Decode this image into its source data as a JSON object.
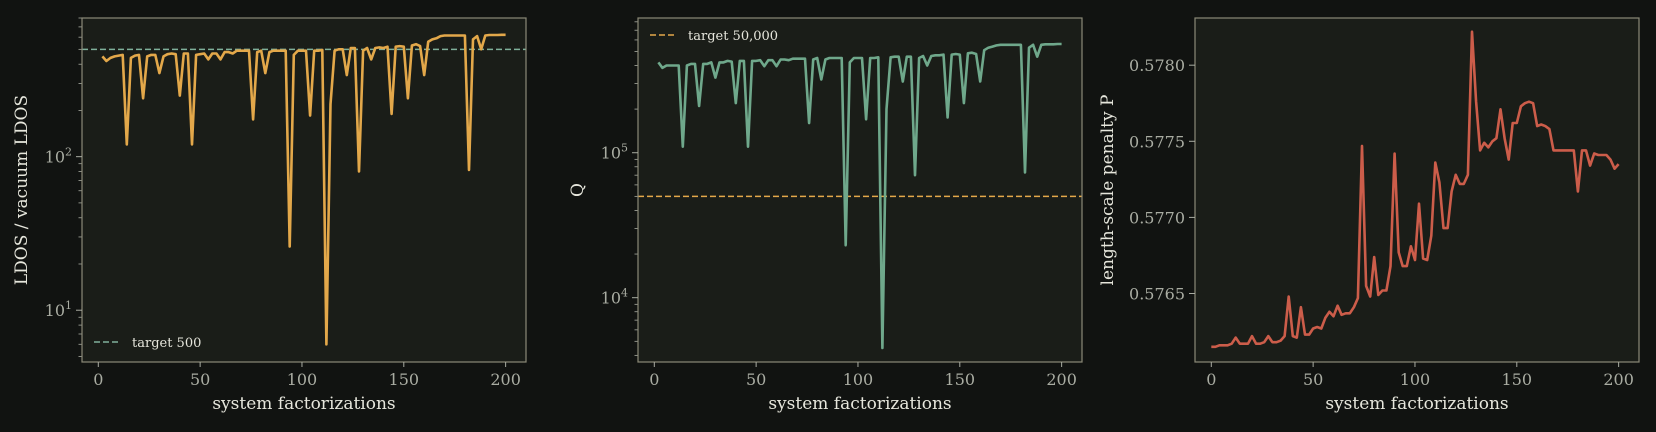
{
  "chart_data": [
    {
      "type": "line",
      "xlabel": "system factorizations",
      "ylabel": "LDOS / vacuum LDOS",
      "yscale": "log",
      "xlim": [
        -8,
        210
      ],
      "ylim": [
        4.6,
        800
      ],
      "xticks": [
        {
          "v": 0,
          "label": "0"
        },
        {
          "v": 50,
          "label": "50"
        },
        {
          "v": 100,
          "label": "100"
        },
        {
          "v": 150,
          "label": "150"
        },
        {
          "v": 200,
          "label": "200"
        }
      ],
      "yticks": [
        {
          "v": 10,
          "base": "10",
          "exp": "1"
        },
        {
          "v": 100,
          "base": "10",
          "exp": "2"
        }
      ],
      "grid": false,
      "legend_position": "lower-left",
      "series": [
        {
          "color": "#e3a84a",
          "x": [
            2,
            4,
            6,
            8,
            10,
            12,
            14,
            16,
            18,
            20,
            22,
            24,
            26,
            28,
            30,
            32,
            34,
            36,
            38,
            40,
            42,
            44,
            46,
            48,
            50,
            52,
            54,
            56,
            58,
            60,
            62,
            64,
            66,
            68,
            70,
            72,
            74,
            76,
            78,
            80,
            82,
            84,
            86,
            88,
            90,
            92,
            94,
            96,
            98,
            100,
            102,
            104,
            106,
            108,
            110,
            112,
            114,
            116,
            118,
            120,
            122,
            124,
            126,
            128,
            130,
            132,
            134,
            136,
            138,
            140,
            142,
            144,
            146,
            148,
            150,
            152,
            154,
            156,
            158,
            160,
            162,
            164,
            166,
            168,
            170,
            172,
            174,
            176,
            178,
            180,
            182,
            184,
            186,
            188,
            190,
            192,
            194,
            196,
            198,
            200
          ],
          "y": [
            450,
            420,
            440,
            450,
            455,
            460,
            120,
            440,
            455,
            460,
            240,
            450,
            460,
            460,
            350,
            450,
            465,
            470,
            465,
            250,
            470,
            470,
            120,
            460,
            465,
            470,
            430,
            470,
            470,
            430,
            480,
            480,
            470,
            490,
            490,
            490,
            490,
            175,
            480,
            490,
            350,
            480,
            490,
            490,
            490,
            490,
            26,
            460,
            490,
            490,
            490,
            185,
            490,
            490,
            495,
            6,
            220,
            490,
            500,
            500,
            340,
            510,
            510,
            80,
            490,
            510,
            430,
            510,
            515,
            510,
            520,
            190,
            520,
            525,
            520,
            240,
            530,
            540,
            525,
            340,
            560,
            580,
            590,
            610,
            615,
            615,
            615,
            615,
            615,
            615,
            82,
            580,
            610,
            500,
            615,
            620,
            620,
            620,
            622,
            622
          ]
        }
      ],
      "reference_line": {
        "y": 500,
        "label": "target 500",
        "color": "#7fb09a"
      }
    },
    {
      "type": "line",
      "xlabel": "system factorizations",
      "ylabel": "Q",
      "yscale": "log",
      "xlim": [
        -8,
        210
      ],
      "ylim": [
        3600,
        850000
      ],
      "xticks": [
        {
          "v": 0,
          "label": "0"
        },
        {
          "v": 50,
          "label": "50"
        },
        {
          "v": 100,
          "label": "100"
        },
        {
          "v": 150,
          "label": "150"
        },
        {
          "v": 200,
          "label": "200"
        }
      ],
      "yticks": [
        {
          "v": 10000,
          "base": "10",
          "exp": "4"
        },
        {
          "v": 100000,
          "base": "10",
          "exp": "5"
        }
      ],
      "grid": false,
      "legend_position": "upper-left",
      "series": [
        {
          "color": "#6fa88b",
          "x": [
            2,
            4,
            6,
            8,
            10,
            12,
            14,
            16,
            18,
            20,
            22,
            24,
            26,
            28,
            30,
            32,
            34,
            36,
            38,
            40,
            42,
            44,
            46,
            48,
            50,
            52,
            54,
            56,
            58,
            60,
            62,
            64,
            66,
            68,
            70,
            72,
            74,
            76,
            78,
            80,
            82,
            84,
            86,
            88,
            90,
            92,
            94,
            96,
            98,
            100,
            102,
            104,
            106,
            108,
            110,
            112,
            114,
            116,
            118,
            120,
            122,
            124,
            126,
            128,
            130,
            132,
            134,
            136,
            138,
            140,
            142,
            144,
            146,
            148,
            150,
            152,
            154,
            156,
            158,
            160,
            162,
            164,
            166,
            168,
            170,
            172,
            174,
            176,
            178,
            180,
            182,
            184,
            186,
            188,
            190,
            192,
            194,
            196,
            198,
            200
          ],
          "y": [
            420000,
            385000,
            400000,
            400000,
            400000,
            400000,
            110000,
            400000,
            410000,
            410000,
            210000,
            410000,
            410000,
            420000,
            330000,
            420000,
            420000,
            430000,
            425000,
            220000,
            430000,
            430000,
            110000,
            430000,
            430000,
            435000,
            395000,
            435000,
            435000,
            395000,
            440000,
            440000,
            435000,
            445000,
            445000,
            445000,
            445000,
            160000,
            440000,
            450000,
            320000,
            440000,
            450000,
            450000,
            450000,
            450000,
            23000,
            420000,
            450000,
            450000,
            450000,
            170000,
            450000,
            450000,
            455000,
            4500,
            200000,
            455000,
            460000,
            460000,
            310000,
            460000,
            460000,
            70000,
            450000,
            465000,
            400000,
            465000,
            470000,
            470000,
            475000,
            175000,
            475000,
            480000,
            475000,
            220000,
            485000,
            490000,
            480000,
            310000,
            510000,
            530000,
            540000,
            550000,
            555000,
            555000,
            555000,
            555000,
            555000,
            555000,
            73000,
            530000,
            555000,
            460000,
            555000,
            560000,
            560000,
            560000,
            562000,
            562000
          ]
        }
      ],
      "reference_line": {
        "y": 50000,
        "label": "target 50,000",
        "color": "#e3a84a"
      }
    },
    {
      "type": "line",
      "xlabel": "system factorizations",
      "ylabel": "length-scale penalty P",
      "yscale": "linear",
      "xlim": [
        -8,
        210
      ],
      "ylim": [
        0.57605,
        0.57831
      ],
      "xticks": [
        {
          "v": 0,
          "label": "0"
        },
        {
          "v": 50,
          "label": "50"
        },
        {
          "v": 100,
          "label": "100"
        },
        {
          "v": 150,
          "label": "150"
        },
        {
          "v": 200,
          "label": "200"
        }
      ],
      "yticks": [
        {
          "v": 0.5765,
          "label": "0.5765"
        },
        {
          "v": 0.577,
          "label": "0.5770"
        },
        {
          "v": 0.5775,
          "label": "0.5775"
        },
        {
          "v": 0.578,
          "label": "0.5780"
        }
      ],
      "grid": false,
      "series": [
        {
          "color": "#cc5d4a",
          "x": [
            0,
            2,
            4,
            6,
            8,
            10,
            12,
            14,
            16,
            18,
            20,
            22,
            24,
            26,
            28,
            30,
            32,
            34,
            36,
            38,
            40,
            42,
            44,
            46,
            48,
            50,
            52,
            54,
            56,
            58,
            60,
            62,
            64,
            66,
            68,
            70,
            72,
            74,
            76,
            78,
            80,
            82,
            84,
            86,
            88,
            90,
            92,
            94,
            96,
            98,
            100,
            102,
            104,
            106,
            108,
            110,
            112,
            114,
            116,
            118,
            120,
            122,
            124,
            126,
            128,
            130,
            132,
            134,
            136,
            138,
            140,
            142,
            144,
            146,
            148,
            150,
            152,
            154,
            156,
            158,
            160,
            162,
            164,
            166,
            168,
            170,
            172,
            174,
            176,
            178,
            180,
            182,
            184,
            186,
            188,
            190,
            192,
            194,
            196,
            198,
            200
          ],
          "y": [
            0.57615,
            0.57615,
            0.57616,
            0.57616,
            0.57616,
            0.57617,
            0.57621,
            0.57617,
            0.57617,
            0.57617,
            0.57622,
            0.57617,
            0.57617,
            0.57618,
            0.57622,
            0.57618,
            0.57618,
            0.57619,
            0.57622,
            0.57648,
            0.57622,
            0.57621,
            0.57641,
            0.57623,
            0.57623,
            0.57627,
            0.57628,
            0.57627,
            0.57634,
            0.57638,
            0.57635,
            0.57642,
            0.57636,
            0.57637,
            0.57637,
            0.57641,
            0.57647,
            0.57747,
            0.57655,
            0.57648,
            0.57674,
            0.57649,
            0.57652,
            0.57652,
            0.57668,
            0.57742,
            0.57677,
            0.57668,
            0.57668,
            0.57681,
            0.57672,
            0.57709,
            0.57673,
            0.57672,
            0.57688,
            0.57736,
            0.57723,
            0.57693,
            0.57693,
            0.57717,
            0.57728,
            0.57722,
            0.57722,
            0.57728,
            0.57822,
            0.57776,
            0.57744,
            0.57749,
            0.57746,
            0.5775,
            0.57752,
            0.57771,
            0.57752,
            0.57738,
            0.57762,
            0.57762,
            0.57773,
            0.57775,
            0.57776,
            0.57775,
            0.5776,
            0.57761,
            0.5776,
            0.57758,
            0.57744,
            0.57744,
            0.57744,
            0.57744,
            0.57744,
            0.57744,
            0.57717,
            0.57744,
            0.57744,
            0.57734,
            0.57742,
            0.57741,
            0.57741,
            0.57741,
            0.57738,
            0.57732,
            0.57735
          ]
        }
      ]
    }
  ]
}
